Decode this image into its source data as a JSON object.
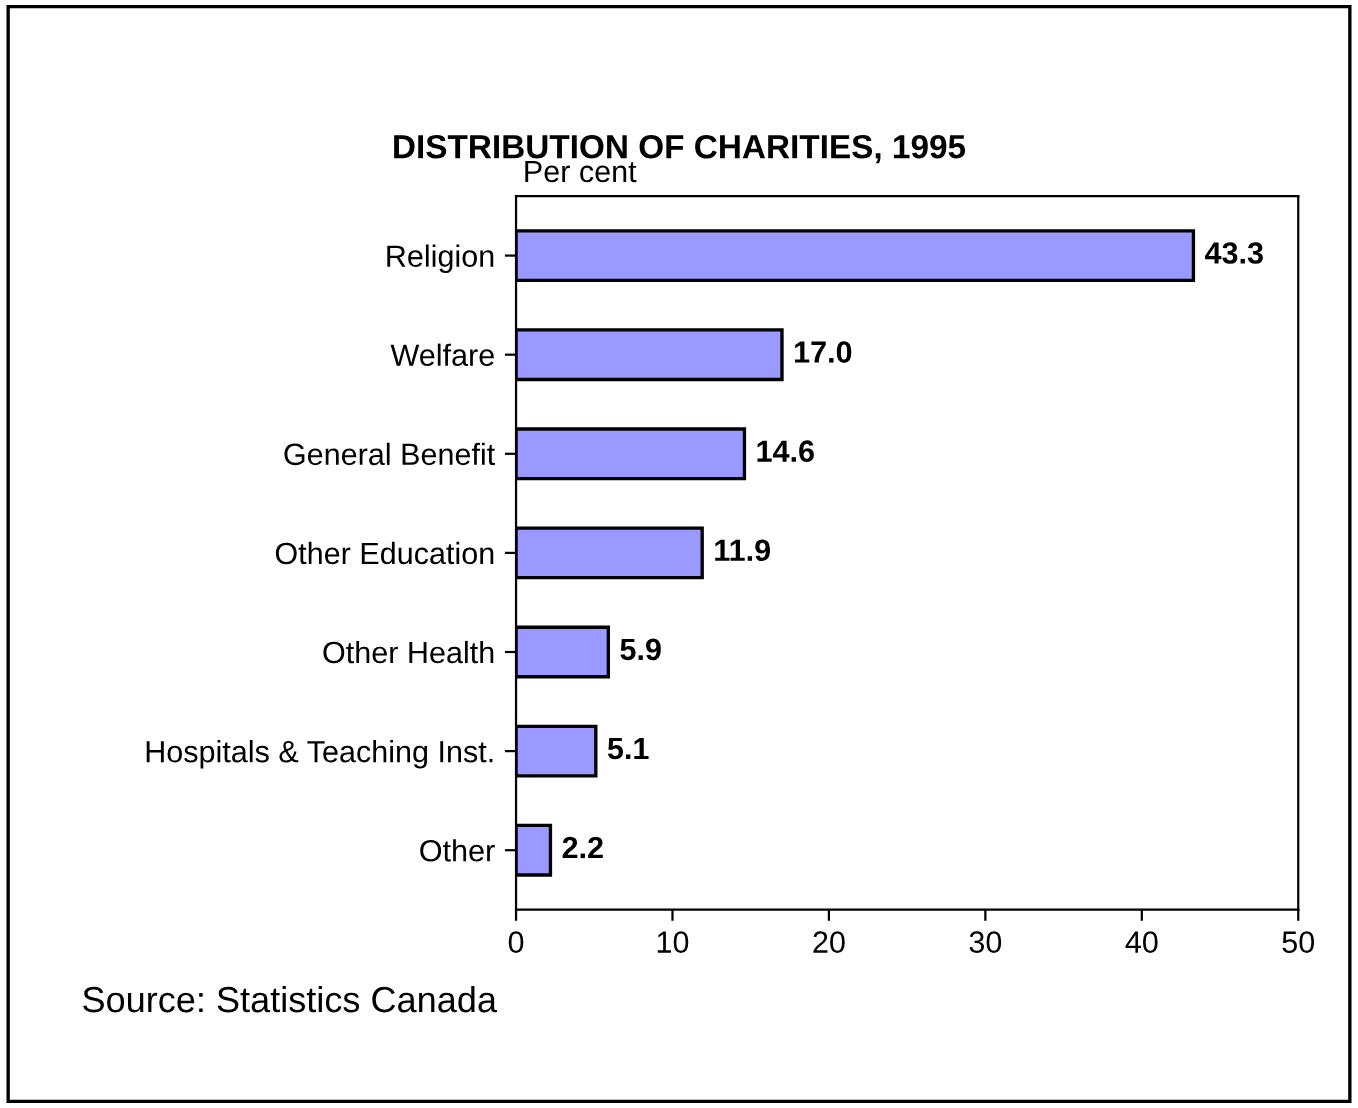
{
  "chart_data": {
    "type": "bar",
    "orientation": "horizontal",
    "title": "DISTRIBUTION OF CHARITIES, 1995",
    "xlabel": "Per cent",
    "categories": [
      "Religion",
      "Welfare",
      "General Benefit",
      "Other Education",
      "Other Health",
      "Hospitals & Teaching Inst.",
      "Other"
    ],
    "values": [
      43.3,
      17.0,
      14.6,
      11.9,
      5.9,
      5.1,
      2.2
    ],
    "value_labels": [
      "43.3",
      "17.0",
      "14.6",
      "11.9",
      "5.9",
      "5.1",
      "2.2"
    ],
    "color": "#9999ff",
    "xlim": [
      0,
      50
    ],
    "xticks": [
      0,
      10,
      20,
      30,
      40,
      50
    ],
    "grid": false,
    "legend": false,
    "annotations": [
      "Source: Statistics Canada"
    ]
  }
}
